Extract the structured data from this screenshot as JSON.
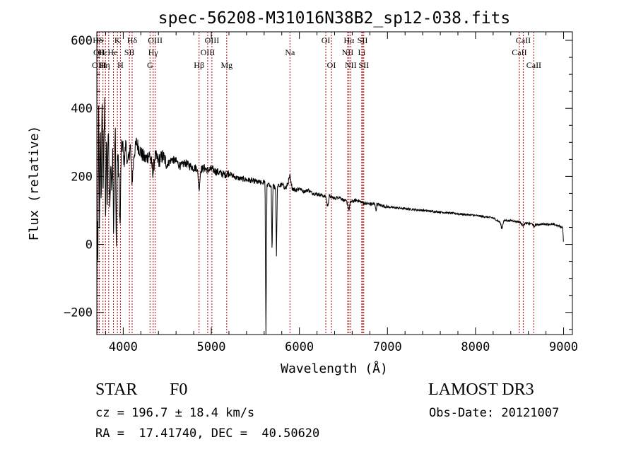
{
  "chart_data": {
    "type": "line",
    "title": "spec-56208-M31016N38B2_sp12-038.fits",
    "xlabel": "Wavelength (Å)",
    "ylabel": "Flux (relative)",
    "xlim": [
      3700,
      9100
    ],
    "ylim": [
      -265,
      625
    ],
    "xticks": [
      4000,
      5000,
      6000,
      7000,
      8000,
      9000
    ],
    "yticks": [
      -200,
      0,
      200,
      400,
      600
    ],
    "xtick_labels": [
      "4000",
      "5000",
      "6000",
      "7000",
      "8000",
      "9000"
    ],
    "ytick_labels": [
      "−200",
      "0",
      "200",
      "400",
      "600"
    ],
    "series": [
      {
        "name": "spectrum",
        "anchors": [
          [
            3700,
            -150
          ],
          [
            3705,
            80
          ],
          [
            3712,
            -60
          ],
          [
            3720,
            420
          ],
          [
            3730,
            30
          ],
          [
            3740,
            380
          ],
          [
            3750,
            100
          ],
          [
            3760,
            440
          ],
          [
            3770,
            150
          ],
          [
            3780,
            300
          ],
          [
            3790,
            410
          ],
          [
            3800,
            60
          ],
          [
            3810,
            320
          ],
          [
            3820,
            120
          ],
          [
            3830,
            360
          ],
          [
            3840,
            180
          ],
          [
            3850,
            120
          ],
          [
            3860,
            260
          ],
          [
            3870,
            140
          ],
          [
            3880,
            300
          ],
          [
            3890,
            40
          ],
          [
            3900,
            230
          ],
          [
            3910,
            340
          ],
          [
            3920,
            -10
          ],
          [
            3935,
            270
          ],
          [
            3950,
            200
          ],
          [
            3965,
            40
          ],
          [
            3975,
            250
          ],
          [
            3990,
            300
          ],
          [
            4010,
            240
          ],
          [
            4030,
            300
          ],
          [
            4050,
            230
          ],
          [
            4080,
            290
          ],
          [
            4101,
            180
          ],
          [
            4120,
            260
          ],
          [
            4150,
            300
          ],
          [
            4200,
            270
          ],
          [
            4250,
            250
          ],
          [
            4300,
            265
          ],
          [
            4340,
            210
          ],
          [
            4360,
            260
          ],
          [
            4400,
            245
          ],
          [
            4450,
            260
          ],
          [
            4500,
            235
          ],
          [
            4550,
            250
          ],
          [
            4600,
            245
          ],
          [
            4650,
            230
          ],
          [
            4700,
            240
          ],
          [
            4750,
            232
          ],
          [
            4800,
            225
          ],
          [
            4840,
            225
          ],
          [
            4861,
            160
          ],
          [
            4880,
            220
          ],
          [
            4920,
            225
          ],
          [
            4960,
            218
          ],
          [
            5000,
            222
          ],
          [
            5050,
            215
          ],
          [
            5100,
            210
          ],
          [
            5150,
            205
          ],
          [
            5200,
            210
          ],
          [
            5250,
            200
          ],
          [
            5300,
            195
          ],
          [
            5400,
            190
          ],
          [
            5500,
            185
          ],
          [
            5580,
            180
          ],
          [
            5610,
            185
          ],
          [
            5620,
            -265
          ],
          [
            5632,
            175
          ],
          [
            5650,
            180
          ],
          [
            5680,
            170
          ],
          [
            5690,
            -30
          ],
          [
            5700,
            175
          ],
          [
            5730,
            165
          ],
          [
            5740,
            -35
          ],
          [
            5750,
            170
          ],
          [
            5800,
            175
          ],
          [
            5850,
            165
          ],
          [
            5893,
            200
          ],
          [
            5910,
            170
          ],
          [
            5950,
            160
          ],
          [
            6000,
            165
          ],
          [
            6050,
            155
          ],
          [
            6100,
            160
          ],
          [
            6150,
            150
          ],
          [
            6200,
            148
          ],
          [
            6250,
            145
          ],
          [
            6300,
            140
          ],
          [
            6320,
            110
          ],
          [
            6340,
            142
          ],
          [
            6400,
            135
          ],
          [
            6450,
            140
          ],
          [
            6500,
            130
          ],
          [
            6540,
            125
          ],
          [
            6563,
            100
          ],
          [
            6580,
            125
          ],
          [
            6650,
            130
          ],
          [
            6700,
            125
          ],
          [
            6750,
            120
          ],
          [
            6860,
            118
          ],
          [
            6870,
            95
          ],
          [
            6880,
            118
          ],
          [
            7000,
            110
          ],
          [
            7200,
            105
          ],
          [
            7400,
            100
          ],
          [
            7600,
            95
          ],
          [
            7800,
            90
          ],
          [
            8000,
            85
          ],
          [
            8200,
            78
          ],
          [
            8280,
            65
          ],
          [
            8300,
            45
          ],
          [
            8320,
            70
          ],
          [
            8400,
            70
          ],
          [
            8500,
            66
          ],
          [
            8542,
            55
          ],
          [
            8560,
            62
          ],
          [
            8650,
            60
          ],
          [
            8662,
            50
          ],
          [
            8680,
            58
          ],
          [
            8800,
            60
          ],
          [
            8900,
            58
          ],
          [
            8990,
            50
          ],
          [
            9000,
            0
          ]
        ]
      }
    ],
    "line_labels": [
      {
        "text": "Hδ",
        "wave": 3711,
        "row": 1
      },
      {
        "text": "OII",
        "wave": 3727,
        "row": 2
      },
      {
        "text": "OIII",
        "wave": 3727,
        "row": 3
      },
      {
        "text": "Hε",
        "wave": 3770,
        "row": 2
      },
      {
        "text": "Hη",
        "wave": 3790,
        "row": 3
      },
      {
        "text": "K",
        "wave": 3934,
        "row": 1
      },
      {
        "text": "He",
        "wave": 3880,
        "row": 2
      },
      {
        "text": "H",
        "wave": 3968,
        "row": 3
      },
      {
        "text": "SII",
        "wave": 4070,
        "row": 2
      },
      {
        "text": "Hδ",
        "wave": 4101,
        "row": 1
      },
      {
        "text": "OIII",
        "wave": 4363,
        "row": 1
      },
      {
        "text": "Hγ",
        "wave": 4340,
        "row": 2
      },
      {
        "text": "G",
        "wave": 4304,
        "row": 3
      },
      {
        "text": "Hβ",
        "wave": 4861,
        "row": 3
      },
      {
        "text": "OIII",
        "wave": 5007,
        "row": 1
      },
      {
        "text": "OIII",
        "wave": 4959,
        "row": 2
      },
      {
        "text": "Mg",
        "wave": 5175,
        "row": 3
      },
      {
        "text": "Na",
        "wave": 5893,
        "row": 2
      },
      {
        "text": "OI",
        "wave": 6300,
        "row": 1
      },
      {
        "text": "OI",
        "wave": 6364,
        "row": 3
      },
      {
        "text": "Hα",
        "wave": 6563,
        "row": 1
      },
      {
        "text": "SII",
        "wave": 6717,
        "row": 1
      },
      {
        "text": "NII",
        "wave": 6548,
        "row": 2
      },
      {
        "text": "Li",
        "wave": 6708,
        "row": 2
      },
      {
        "text": "NII",
        "wave": 6583,
        "row": 3
      },
      {
        "text": "SII",
        "wave": 6731,
        "row": 3
      },
      {
        "text": "CaII",
        "wave": 8542,
        "row": 1
      },
      {
        "text": "CaII",
        "wave": 8498,
        "row": 2
      },
      {
        "text": "CaII",
        "wave": 8662,
        "row": 3
      }
    ],
    "line_markers": [
      3711,
      3727,
      3770,
      3798,
      3835,
      3889,
      3934,
      3968,
      4070,
      4101,
      4304,
      4340,
      4363,
      4861,
      4959,
      5007,
      5175,
      5893,
      6300,
      6364,
      6548,
      6563,
      6583,
      6708,
      6717,
      6731,
      8498,
      8542,
      8662
    ]
  },
  "info": {
    "class": "STAR",
    "subclass": "F0",
    "survey": "LAMOST DR3",
    "redshift": "cz = 196.7 ± 18.4 km/s",
    "obs_date": "Obs-Date: 20121007",
    "coords": "RA =  17.41740, DEC =  40.50620"
  }
}
